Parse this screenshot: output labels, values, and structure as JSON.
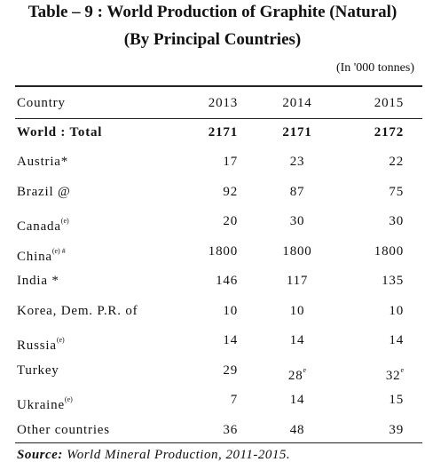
{
  "header": {
    "title": "Table – 9 : World Production of Graphite (Natural)",
    "subtitle": "(By Principal Countries)",
    "unit": "(In  '000 tonnes)"
  },
  "table": {
    "columns": [
      "Country",
      "2013",
      "2014",
      "2015"
    ],
    "total": {
      "country": "World : Total",
      "values": [
        2171,
        2171,
        2172
      ]
    },
    "rows": [
      {
        "country": "Austria*",
        "values": [
          17,
          23,
          22
        ]
      },
      {
        "country": "Brazil @",
        "values": [
          92,
          87,
          75
        ]
      },
      {
        "country": "Canada",
        "note": "(e)",
        "values": [
          20,
          30,
          30
        ]
      },
      {
        "country": "China",
        "note": "(e) #",
        "values": [
          1800,
          1800,
          1800
        ]
      },
      {
        "country": "India *",
        "values": [
          146,
          117,
          135
        ]
      },
      {
        "country": "Korea, Dem. P.R. of",
        "values": [
          10,
          10,
          10
        ]
      },
      {
        "country": "Russia",
        "note": "(e)",
        "values": [
          14,
          14,
          14
        ]
      },
      {
        "country": "Turkey",
        "values": [
          29,
          {
            "value": 28,
            "note": "e"
          },
          {
            "value": 32,
            "note": "e"
          }
        ]
      },
      {
        "country": "Ukraine",
        "note": "(e)",
        "values": [
          7,
          14,
          15
        ]
      },
      {
        "country": "Other countries",
        "values": [
          36,
          48,
          39
        ]
      }
    ]
  },
  "footer": {
    "source_label": "Source:",
    "source": "World Mineral Production, 2011-2015."
  }
}
